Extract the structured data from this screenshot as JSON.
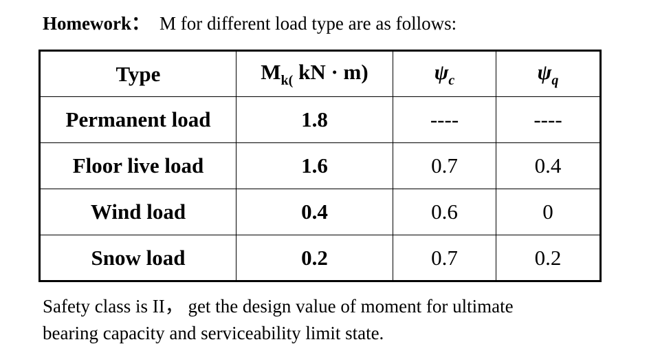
{
  "header": {
    "label": "Homework：",
    "text": "M for different load type are as follows:"
  },
  "table": {
    "columns": [
      {
        "text": "Type"
      },
      {
        "base": "M",
        "sub": "k(",
        "rest": " kN · m)"
      },
      {
        "base": "ψ",
        "sub": "c"
      },
      {
        "base": "ψ",
        "sub": "q"
      }
    ],
    "rows": [
      [
        "Permanent load",
        "1.8",
        "----",
        "----"
      ],
      [
        "Floor live load",
        "1.6",
        "0.7",
        "0.4"
      ],
      [
        "Wind load",
        "0.4",
        "0.6",
        "0"
      ],
      [
        "Snow load",
        "0.2",
        "0.7",
        "0.2"
      ]
    ]
  },
  "footer": {
    "lines": [
      "Safety class is II， get the design value of moment for ultimate",
      "bearing capacity and serviceability limit state."
    ]
  }
}
